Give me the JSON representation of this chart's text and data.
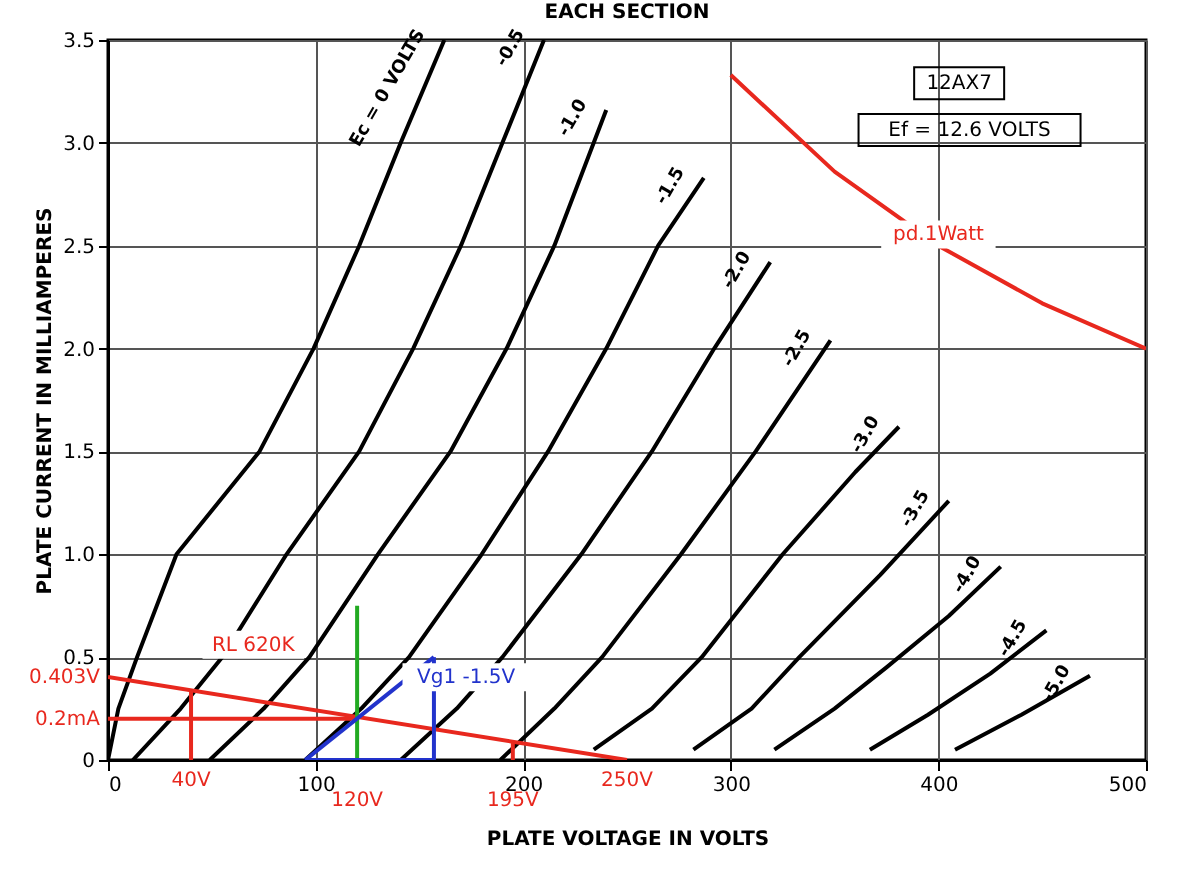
{
  "chart_data": {
    "type": "line",
    "title": "EACH SECTION",
    "xlabel": "PLATE VOLTAGE IN VOLTS",
    "ylabel": "PLATE CURRENT IN MILLIAMPERES",
    "xlim": [
      0,
      500
    ],
    "xticks": [
      0,
      100,
      200,
      300,
      400,
      500
    ],
    "ylim": [
      0,
      3.5
    ],
    "yticks": [
      0,
      0.5,
      {
        "value": 1,
        "label": "1.0"
      },
      1.5,
      {
        "value": 2,
        "label": "2.0"
      },
      2.5,
      {
        "value": 3,
        "label": "3.0"
      },
      3.5
    ],
    "grid": true,
    "line_style": "solid",
    "marker": "none",
    "series": [
      {
        "name": "Ec = 0 VOLTS",
        "color": "#000000",
        "x": [
          0,
          5,
          14,
          33,
          73,
          99,
          121,
          141,
          162
        ],
        "values": [
          0,
          0.25,
          0.5,
          1.0,
          1.5,
          2.0,
          2.5,
          3.0,
          3.5
        ]
      },
      {
        "name": "-0.5",
        "color": "#000000",
        "x": [
          12,
          35,
          55,
          86,
          121,
          147,
          170,
          190,
          210
        ],
        "values": [
          0,
          0.25,
          0.5,
          1.0,
          1.5,
          2.0,
          2.5,
          3.0,
          3.5
        ]
      },
      {
        "name": "-1.0",
        "color": "#000000",
        "x": [
          49,
          75,
          97,
          130,
          165,
          192,
          215,
          240
        ],
        "values": [
          0,
          0.25,
          0.5,
          1.0,
          1.5,
          2.0,
          2.5,
          3.16
        ]
      },
      {
        "name": "-1.5",
        "color": "#000000",
        "x": [
          95,
          122,
          145,
          180,
          212,
          240,
          265,
          287
        ],
        "values": [
          0,
          0.25,
          0.5,
          1.0,
          1.5,
          2.0,
          2.5,
          2.83
        ]
      },
      {
        "name": "-2.0",
        "color": "#000000",
        "x": [
          141,
          168,
          190,
          228,
          262,
          292,
          319
        ],
        "values": [
          0,
          0.25,
          0.5,
          1.0,
          1.5,
          2.0,
          2.42
        ]
      },
      {
        "name": "-2.5",
        "color": "#000000",
        "x": [
          189,
          215,
          238,
          276,
          312,
          348
        ],
        "values": [
          0,
          0.25,
          0.5,
          1.0,
          1.5,
          2.04
        ]
      },
      {
        "name": "-3.0",
        "color": "#000000",
        "x": [
          234,
          262,
          286,
          325,
          360,
          381
        ],
        "values": [
          0.05,
          0.25,
          0.5,
          1.0,
          1.4,
          1.62
        ]
      },
      {
        "name": "-3.5",
        "color": "#000000",
        "x": [
          282,
          310,
          333,
          372,
          405
        ],
        "values": [
          0.05,
          0.25,
          0.5,
          0.9,
          1.26
        ]
      },
      {
        "name": "-4.0",
        "color": "#000000",
        "x": [
          321,
          350,
          375,
          405,
          430
        ],
        "values": [
          0.05,
          0.25,
          0.45,
          0.7,
          0.94
        ]
      },
      {
        "name": "-4.5",
        "color": "#000000",
        "x": [
          367,
          395,
          425,
          452
        ],
        "values": [
          0.05,
          0.22,
          0.42,
          0.63
        ]
      },
      {
        "name": "-5.0",
        "color": "#000000",
        "x": [
          408,
          440,
          473
        ],
        "values": [
          0.05,
          0.22,
          0.41
        ]
      },
      {
        "color": "#e8281e",
        "x": [
          300,
          350,
          400,
          450,
          500
        ],
        "values": [
          3.33,
          2.86,
          2.5,
          2.22,
          2.0
        ]
      },
      {
        "color": "#e8281e",
        "x": [
          0,
          250
        ],
        "values": [
          0.403,
          0
        ]
      },
      {
        "color": "#e8281e",
        "x": [
          0,
          120
        ],
        "values": [
          0.2,
          0.2
        ]
      },
      {
        "color": "#e8281e",
        "x": [
          40,
          40
        ],
        "values": [
          0.34,
          0
        ]
      },
      {
        "color": "#e8281e",
        "x": [
          195,
          195
        ],
        "values": [
          0.09,
          0
        ]
      },
      {
        "color": "#22aa22",
        "x": [
          120,
          120
        ],
        "values": [
          0,
          0.75
        ]
      },
      {
        "color": "#2233cc",
        "x": [
          95,
          157
        ],
        "values": [
          0,
          0.5
        ]
      },
      {
        "color": "#2233cc",
        "x": [
          157,
          157
        ],
        "values": [
          0.5,
          0
        ]
      },
      {
        "color": "#2233cc",
        "x": [
          95,
          157
        ],
        "values": [
          0,
          0
        ]
      }
    ],
    "annotations": [
      "12AX7",
      "Ef = 12.6 VOLTS",
      "pd.1Watt",
      "RL 620K",
      "Vg1 -1.5V",
      {
        "text": "0.403V",
        "x": 0,
        "y": 0.403
      },
      {
        "text": "0.2mA",
        "x": 0,
        "y": 0.2
      },
      {
        "text": "40V",
        "x": 40,
        "y": 0
      },
      {
        "text": "120V",
        "x": 120,
        "y": 0
      },
      {
        "text": "195V",
        "x": 195,
        "y": 0
      },
      {
        "text": "250V",
        "x": 250,
        "y": 0
      }
    ]
  }
}
